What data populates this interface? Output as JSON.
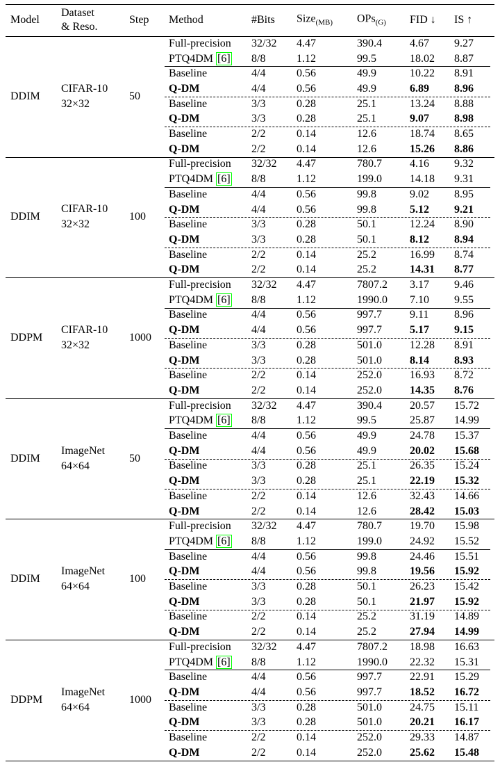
{
  "header": [
    {
      "text": "Model"
    },
    {
      "lines": [
        "Dataset",
        "& Reso."
      ]
    },
    {
      "text": "Step"
    },
    {
      "text": "Method"
    },
    {
      "text": "#Bits"
    },
    {
      "text": "Size",
      "sub": "(MB)"
    },
    {
      "text": "OPs",
      "sub": "(G)"
    },
    {
      "text": "FID ↓"
    },
    {
      "text": "IS ↑"
    }
  ],
  "groups": [
    {
      "model": "DDIM",
      "dataset": [
        "CIFAR-10",
        "32×32"
      ],
      "step": "50",
      "rows": [
        {
          "cells": [
            "Full-precision",
            "32/32",
            "4.47",
            "390.4",
            "4.67",
            "9.27"
          ]
        },
        {
          "cells": [
            "PTQ4DM",
            "8/8",
            "1.12",
            "99.5",
            "18.02",
            "8.87"
          ],
          "cite": "[6]"
        },
        {
          "cells": [
            "Baseline",
            "4/4",
            "0.56",
            "49.9",
            "10.22",
            "8.91"
          ]
        },
        {
          "cells": [
            "Q-DM",
            "4/4",
            "0.56",
            "49.9",
            "6.89",
            "8.96"
          ],
          "bold": true
        },
        {
          "cells": [
            "Baseline",
            "3/3",
            "0.28",
            "25.1",
            "13.24",
            "8.88"
          ]
        },
        {
          "cells": [
            "Q-DM",
            "3/3",
            "0.28",
            "25.1",
            "9.07",
            "8.98"
          ],
          "bold": true
        },
        {
          "cells": [
            "Baseline",
            "2/2",
            "0.14",
            "12.6",
            "18.74",
            "8.65"
          ]
        },
        {
          "cells": [
            "Q-DM",
            "2/2",
            "0.14",
            "12.6",
            "15.26",
            "8.86"
          ],
          "bold": true
        }
      ]
    },
    {
      "model": "DDIM",
      "dataset": [
        "CIFAR-10",
        "32×32"
      ],
      "step": "100",
      "rows": [
        {
          "cells": [
            "Full-precision",
            "32/32",
            "4.47",
            "780.7",
            "4.16",
            "9.32"
          ]
        },
        {
          "cells": [
            "PTQ4DM",
            "8/8",
            "1.12",
            "199.0",
            "14.18",
            "9.31"
          ],
          "cite": "[6]"
        },
        {
          "cells": [
            "Baseline",
            "4/4",
            "0.56",
            "99.8",
            "9.02",
            "8.95"
          ]
        },
        {
          "cells": [
            "Q-DM",
            "4/4",
            "0.56",
            "99.8",
            "5.12",
            "9.21"
          ],
          "bold": true
        },
        {
          "cells": [
            "Baseline",
            "3/3",
            "0.28",
            "50.1",
            "12.24",
            "8.90"
          ]
        },
        {
          "cells": [
            "Q-DM",
            "3/3",
            "0.28",
            "50.1",
            "8.12",
            "8.94"
          ],
          "bold": true
        },
        {
          "cells": [
            "Baseline",
            "2/2",
            "0.14",
            "25.2",
            "16.99",
            "8.74"
          ]
        },
        {
          "cells": [
            "Q-DM",
            "2/2",
            "0.14",
            "25.2",
            "14.31",
            "8.77"
          ],
          "bold": true
        }
      ]
    },
    {
      "model": "DDPM",
      "dataset": [
        "CIFAR-10",
        "32×32"
      ],
      "step": "1000",
      "rows": [
        {
          "cells": [
            "Full-precision",
            "32/32",
            "4.47",
            "7807.2",
            "3.17",
            "9.46"
          ]
        },
        {
          "cells": [
            "PTQ4DM",
            "8/8",
            "1.12",
            "1990.0",
            "7.10",
            "9.55"
          ],
          "cite": "[6]"
        },
        {
          "cells": [
            "Baseline",
            "4/4",
            "0.56",
            "997.7",
            "9.11",
            "8.96"
          ]
        },
        {
          "cells": [
            "Q-DM",
            "4/4",
            "0.56",
            "997.7",
            "5.17",
            "9.15"
          ],
          "bold": true
        },
        {
          "cells": [
            "Baseline",
            "3/3",
            "0.28",
            "501.0",
            "12.28",
            "8.91"
          ]
        },
        {
          "cells": [
            "Q-DM",
            "3/3",
            "0.28",
            "501.0",
            "8.14",
            "8.93"
          ],
          "bold": true
        },
        {
          "cells": [
            "Baseline",
            "2/2",
            "0.14",
            "252.0",
            "16.93",
            "8.72"
          ]
        },
        {
          "cells": [
            "Q-DM",
            "2/2",
            "0.14",
            "252.0",
            "14.35",
            "8.76"
          ],
          "bold": true
        }
      ]
    },
    {
      "model": "DDIM",
      "dataset": [
        "ImageNet",
        "64×64"
      ],
      "step": "50",
      "rows": [
        {
          "cells": [
            "Full-precision",
            "32/32",
            "4.47",
            "390.4",
            "20.57",
            "15.72"
          ]
        },
        {
          "cells": [
            "PTQ4DM",
            "8/8",
            "1.12",
            "99.5",
            "25.87",
            "14.99"
          ],
          "cite": "[6]"
        },
        {
          "cells": [
            "Baseline",
            "4/4",
            "0.56",
            "49.9",
            "24.78",
            "15.37"
          ]
        },
        {
          "cells": [
            "Q-DM",
            "4/4",
            "0.56",
            "49.9",
            "20.02",
            "15.68"
          ],
          "bold": true
        },
        {
          "cells": [
            "Baseline",
            "3/3",
            "0.28",
            "25.1",
            "26.35",
            "15.24"
          ]
        },
        {
          "cells": [
            "Q-DM",
            "3/3",
            "0.28",
            "25.1",
            "22.19",
            "15.32"
          ],
          "bold": true
        },
        {
          "cells": [
            "Baseline",
            "2/2",
            "0.14",
            "12.6",
            "32.43",
            "14.66"
          ]
        },
        {
          "cells": [
            "Q-DM",
            "2/2",
            "0.14",
            "12.6",
            "28.42",
            "15.03"
          ],
          "bold": true
        }
      ]
    },
    {
      "model": "DDIM",
      "dataset": [
        "ImageNet",
        "64×64"
      ],
      "step": "100",
      "rows": [
        {
          "cells": [
            "Full-precision",
            "32/32",
            "4.47",
            "780.7",
            "19.70",
            "15.98"
          ]
        },
        {
          "cells": [
            "PTQ4DM",
            "8/8",
            "1.12",
            "199.0",
            "24.92",
            "15.52"
          ],
          "cite": "[6]"
        },
        {
          "cells": [
            "Baseline",
            "4/4",
            "0.56",
            "99.8",
            "24.46",
            "15.51"
          ]
        },
        {
          "cells": [
            "Q-DM",
            "4/4",
            "0.56",
            "99.8",
            "19.56",
            "15.92"
          ],
          "bold": true
        },
        {
          "cells": [
            "Baseline",
            "3/3",
            "0.28",
            "50.1",
            "26.23",
            "15.42"
          ]
        },
        {
          "cells": [
            "Q-DM",
            "3/3",
            "0.28",
            "50.1",
            "21.97",
            "15.92"
          ],
          "bold": true
        },
        {
          "cells": [
            "Baseline",
            "2/2",
            "0.14",
            "25.2",
            "31.19",
            "14.89"
          ]
        },
        {
          "cells": [
            "Q-DM",
            "2/2",
            "0.14",
            "25.2",
            "27.94",
            "14.99"
          ],
          "bold": true
        }
      ]
    },
    {
      "model": "DDPM",
      "dataset": [
        "ImageNet",
        "64×64"
      ],
      "step": "1000",
      "rows": [
        {
          "cells": [
            "Full-precision",
            "32/32",
            "4.47",
            "7807.2",
            "18.98",
            "16.63"
          ]
        },
        {
          "cells": [
            "PTQ4DM",
            "8/8",
            "1.12",
            "1990.0",
            "22.32",
            "15.31"
          ],
          "cite": "[6]"
        },
        {
          "cells": [
            "Baseline",
            "4/4",
            "0.56",
            "997.7",
            "22.91",
            "15.29"
          ]
        },
        {
          "cells": [
            "Q-DM",
            "4/4",
            "0.56",
            "997.7",
            "18.52",
            "16.72"
          ],
          "bold": true
        },
        {
          "cells": [
            "Baseline",
            "3/3",
            "0.28",
            "501.0",
            "24.75",
            "15.11"
          ]
        },
        {
          "cells": [
            "Q-DM",
            "3/3",
            "0.28",
            "501.0",
            "20.21",
            "16.17"
          ],
          "bold": true
        },
        {
          "cells": [
            "Baseline",
            "2/2",
            "0.14",
            "252.0",
            "29.33",
            "14.87"
          ]
        },
        {
          "cells": [
            "Q-DM",
            "2/2",
            "0.14",
            "252.0",
            "25.62",
            "15.48"
          ],
          "bold": true
        }
      ]
    }
  ]
}
